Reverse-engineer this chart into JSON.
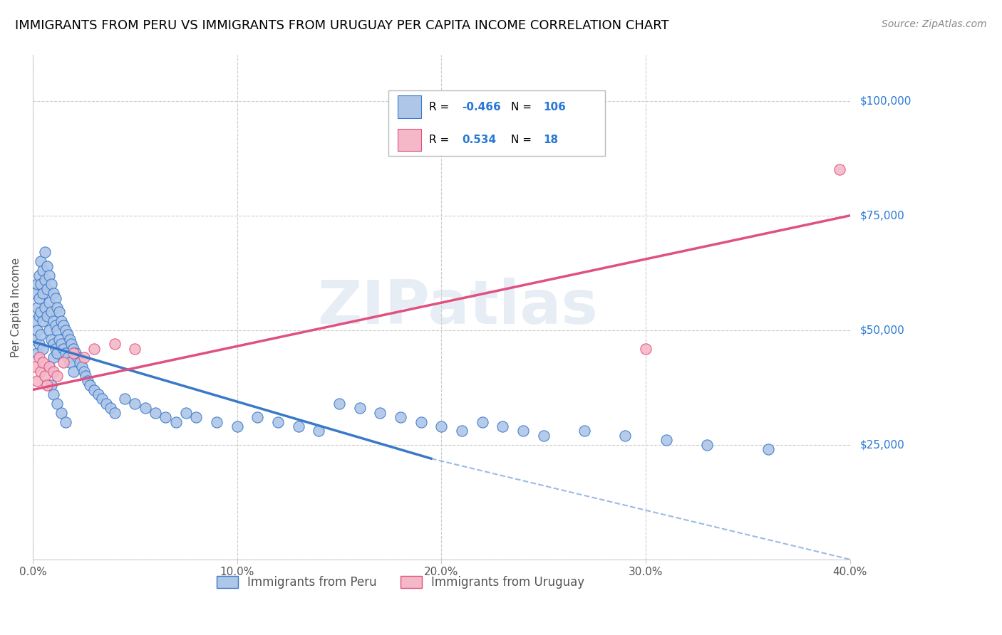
{
  "title": "IMMIGRANTS FROM PERU VS IMMIGRANTS FROM URUGUAY PER CAPITA INCOME CORRELATION CHART",
  "source": "Source: ZipAtlas.com",
  "ylabel": "Per Capita Income",
  "xlim": [
    0.0,
    0.4
  ],
  "ylim": [
    0,
    110000
  ],
  "xtick_labels": [
    "0.0%",
    "10.0%",
    "20.0%",
    "30.0%",
    "40.0%"
  ],
  "xtick_values": [
    0.0,
    0.1,
    0.2,
    0.3,
    0.4
  ],
  "ytick_values": [
    0,
    25000,
    50000,
    75000,
    100000
  ],
  "ytick_labels": [
    "",
    "$25,000",
    "$50,000",
    "$75,000",
    "$100,000"
  ],
  "legend_R1": "-0.466",
  "legend_N1": "106",
  "legend_R2": "0.534",
  "legend_N2": "18",
  "color_peru": "#aec6e8",
  "color_peru_line": "#3a78c9",
  "color_uruguay": "#f4b8c8",
  "color_uruguay_line": "#e05080",
  "color_dashed": "#88aacc",
  "watermark_text": "ZIPatlas",
  "peru_scatter_x": [
    0.001,
    0.001,
    0.001,
    0.002,
    0.002,
    0.002,
    0.002,
    0.003,
    0.003,
    0.003,
    0.003,
    0.004,
    0.004,
    0.004,
    0.004,
    0.005,
    0.005,
    0.005,
    0.005,
    0.006,
    0.006,
    0.006,
    0.007,
    0.007,
    0.007,
    0.008,
    0.008,
    0.008,
    0.009,
    0.009,
    0.009,
    0.01,
    0.01,
    0.01,
    0.01,
    0.011,
    0.011,
    0.011,
    0.012,
    0.012,
    0.012,
    0.013,
    0.013,
    0.014,
    0.014,
    0.015,
    0.015,
    0.016,
    0.016,
    0.017,
    0.017,
    0.018,
    0.018,
    0.019,
    0.02,
    0.02,
    0.021,
    0.022,
    0.023,
    0.024,
    0.025,
    0.026,
    0.027,
    0.028,
    0.03,
    0.032,
    0.034,
    0.036,
    0.038,
    0.04,
    0.045,
    0.05,
    0.055,
    0.06,
    0.065,
    0.07,
    0.075,
    0.08,
    0.09,
    0.1,
    0.11,
    0.12,
    0.13,
    0.14,
    0.15,
    0.16,
    0.17,
    0.18,
    0.19,
    0.2,
    0.21,
    0.22,
    0.23,
    0.24,
    0.25,
    0.27,
    0.29,
    0.31,
    0.33,
    0.36,
    0.008,
    0.009,
    0.01,
    0.012,
    0.014,
    0.016
  ],
  "peru_scatter_y": [
    48000,
    52000,
    58000,
    50000,
    55000,
    60000,
    45000,
    62000,
    57000,
    53000,
    47000,
    65000,
    60000,
    54000,
    49000,
    63000,
    58000,
    52000,
    46000,
    67000,
    61000,
    55000,
    64000,
    59000,
    53000,
    62000,
    56000,
    50000,
    60000,
    54000,
    48000,
    58000,
    52000,
    47000,
    44000,
    57000,
    51000,
    46000,
    55000,
    50000,
    45000,
    54000,
    48000,
    52000,
    47000,
    51000,
    46000,
    50000,
    45000,
    49000,
    44000,
    48000,
    43000,
    47000,
    46000,
    41000,
    45000,
    44000,
    43000,
    42000,
    41000,
    40000,
    39000,
    38000,
    37000,
    36000,
    35000,
    34000,
    33000,
    32000,
    35000,
    34000,
    33000,
    32000,
    31000,
    30000,
    32000,
    31000,
    30000,
    29000,
    31000,
    30000,
    29000,
    28000,
    34000,
    33000,
    32000,
    31000,
    30000,
    29000,
    28000,
    30000,
    29000,
    28000,
    27000,
    28000,
    27000,
    26000,
    25000,
    24000,
    42000,
    38000,
    36000,
    34000,
    32000,
    30000
  ],
  "uruguay_scatter_x": [
    0.001,
    0.002,
    0.003,
    0.004,
    0.005,
    0.006,
    0.007,
    0.008,
    0.01,
    0.012,
    0.015,
    0.02,
    0.025,
    0.03,
    0.04,
    0.05,
    0.3,
    0.395
  ],
  "uruguay_scatter_y": [
    42000,
    39000,
    44000,
    41000,
    43000,
    40000,
    38000,
    42000,
    41000,
    40000,
    43000,
    45000,
    44000,
    46000,
    47000,
    46000,
    46000,
    85000
  ],
  "peru_line_x": [
    0.0,
    0.195
  ],
  "peru_line_y": [
    47500,
    22000
  ],
  "dashed_line_x": [
    0.195,
    0.4
  ],
  "dashed_line_y": [
    22000,
    0
  ],
  "uruguay_line_x": [
    0.0,
    0.4
  ],
  "uruguay_line_y": [
    37000,
    75000
  ]
}
